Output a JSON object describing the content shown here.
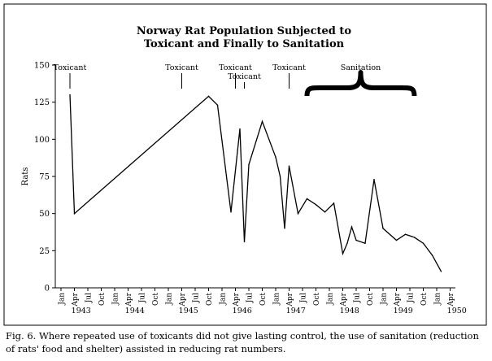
{
  "chart_data": {
    "type": "line",
    "title_line1": "Norway Rat Population Subjected to",
    "title_line2": "Toxicant and Finally to Sanitation",
    "ylabel": "Rats",
    "ylim": [
      0,
      150
    ],
    "yticks": [
      0,
      25,
      50,
      75,
      100,
      125,
      150
    ],
    "grid": false,
    "x_tick_labels": [
      "Jan",
      "Apr",
      "Jul",
      "Oct",
      "Jan",
      "Apr",
      "Jul",
      "Oct",
      "Jan",
      "Apr",
      "Jul",
      "Oct",
      "Jan",
      "Apr",
      "Jul",
      "Oct",
      "Jan",
      "Apr",
      "Jul",
      "Oct",
      "Jan",
      "Apr",
      "Jul",
      "Oct",
      "Jan",
      "Apr",
      "Jul",
      "Oct",
      "Jan",
      "Apr"
    ],
    "x_year_labels": [
      "1943",
      "1944",
      "1945",
      "1946",
      "1947",
      "1948",
      "1949",
      "1950"
    ],
    "series": [
      {
        "x": [
          "1943-03",
          "1943-04",
          "1945-10",
          "1945-12",
          "1946-03",
          "1946-05",
          "1946-06",
          "1946-07",
          "1946-10",
          "1947-01",
          "1947-02",
          "1947-03",
          "1947-04",
          "1947-06",
          "1947-08",
          "1947-10",
          "1947-12",
          "1948-02",
          "1948-04",
          "1948-05",
          "1948-06",
          "1948-07",
          "1948-09",
          "1948-11",
          "1949-01",
          "1949-04",
          "1949-06",
          "1949-08",
          "1949-10",
          "1949-12",
          "1950-02"
        ],
        "y": [
          130,
          50,
          129,
          123,
          51,
          107,
          31,
          83,
          112,
          88,
          75,
          40,
          82,
          50,
          60,
          56,
          51,
          57,
          23,
          30,
          41,
          32,
          30,
          73,
          40,
          32,
          36,
          34,
          30,
          22,
          11
        ]
      }
    ],
    "annotations": [
      {
        "label": "Toxicant",
        "x": "1943-03"
      },
      {
        "label": "Toxicant",
        "x": "1945-04"
      },
      {
        "label": "Toxicant",
        "x": "1946-04"
      },
      {
        "label": "Toxicant",
        "x": "1946-06"
      },
      {
        "label": "Toxicant",
        "x": "1947-04"
      }
    ],
    "sanitation": {
      "label": "Sanitation",
      "start": "1947-08",
      "end": "1949-08"
    }
  },
  "caption": "Fig. 6. Where repeated use of toxicants did not give lasting control, the use of sanitation (reduction of rats' food and shelter) assisted in reducing rat numbers."
}
